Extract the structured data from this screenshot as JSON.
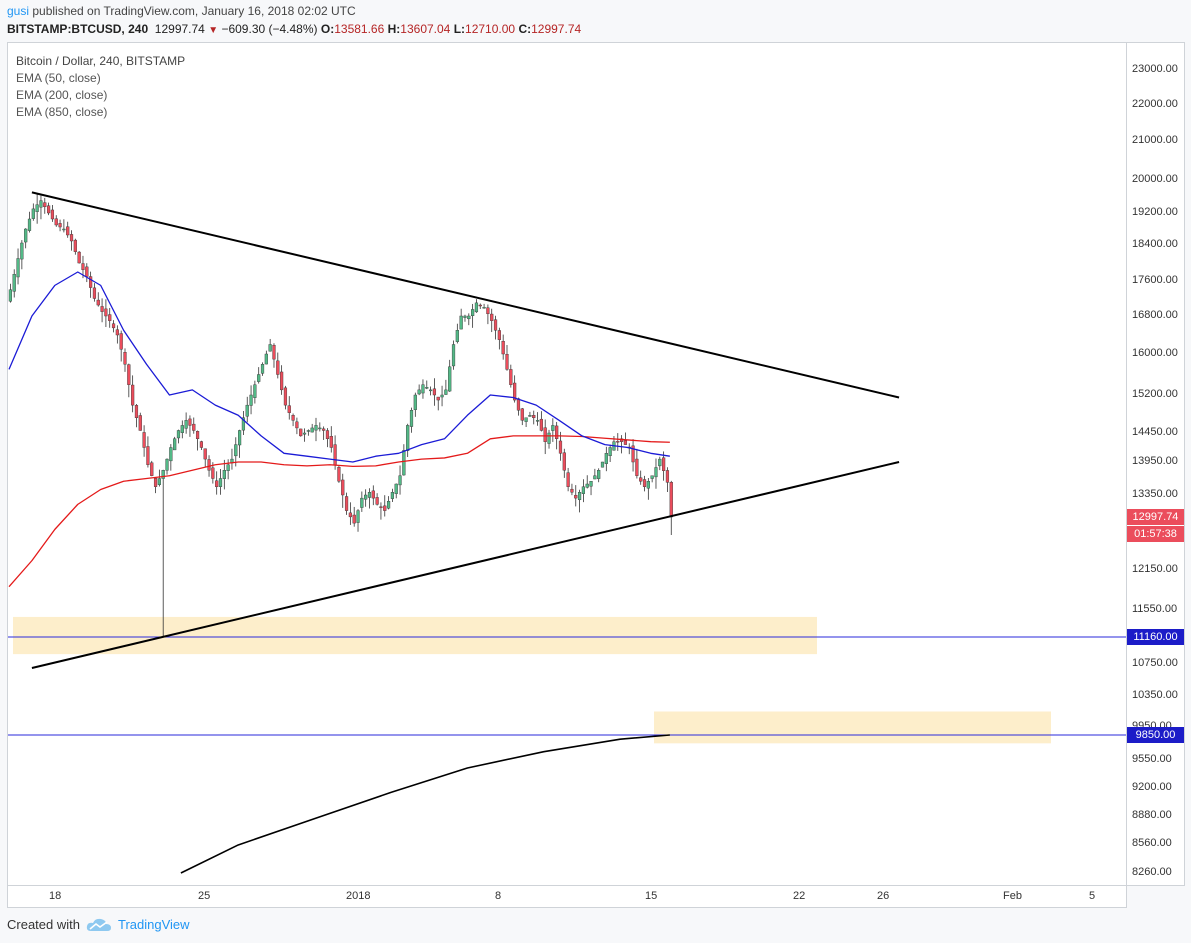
{
  "header": {
    "user": "gusi",
    "published": " published on TradingView.com, January 16, 2018 02:02 UTC",
    "symbol": "BITSTAMP:BTCUSD, 240",
    "last": "12997.74",
    "down_arrow": "▼",
    "change": "−609.30 (−4.48%)",
    "o_label": "O:",
    "o": "13581.66",
    "h_label": "H:",
    "h": "13607.04",
    "l_label": "L:",
    "l": "12710.00",
    "c_label": "C:",
    "c": "12997.74"
  },
  "legend": {
    "title": "Bitcoin / Dollar, 240, BITSTAMP",
    "ema1": "EMA (50, close)",
    "ema2": "EMA (200, close)",
    "ema3": "EMA (850, close)"
  },
  "price_axis": {
    "ticks": [
      "23000.00",
      "22000.00",
      "21000.00",
      "20000.00",
      "19200.00",
      "18400.00",
      "17600.00",
      "16800.00",
      "16000.00",
      "15200.00",
      "14450.00",
      "13950.00",
      "13350.00",
      "12150.00",
      "11550.00",
      "10750.00",
      "10350.00",
      "9950.00",
      "9550.00",
      "9200.00",
      "8880.00",
      "8560.00",
      "8260.00"
    ],
    "last_price": "12997.74",
    "countdown": "01:57:38",
    "level1": "11160.00",
    "level2": "9850.00"
  },
  "time_axis": {
    "ticks": [
      "18",
      "25",
      "2018",
      "8",
      "15",
      "22",
      "26",
      "Feb",
      "5"
    ]
  },
  "footer": {
    "created_with": "Created with",
    "brand": "TradingView"
  },
  "colors": {
    "up": "#53b987",
    "down": "#eb4d5c",
    "ema50": "#1b1bd6",
    "ema200": "#e41a1a",
    "ema850": "#000000",
    "zone": "#fdeecb",
    "hline": "#2a2adb",
    "last_badge": "#eb4d5c",
    "level_badge": "#1c1cc8"
  },
  "chart_data": {
    "type": "candlestick",
    "title": "Bitcoin / Dollar, 240, BITSTAMP",
    "x_ticks": [
      "18",
      "25",
      "2018",
      "8",
      "15",
      "22",
      "26",
      "Feb",
      "5"
    ],
    "y_ticks": [
      23000,
      22000,
      21000,
      20000,
      19200,
      18400,
      17600,
      16800,
      16000,
      15200,
      14450,
      13950,
      13350,
      12150,
      11550,
      10750,
      10350,
      9950,
      9550,
      9200,
      8880,
      8560,
      8260
    ],
    "close_path": [
      [
        0,
        17400
      ],
      [
        2,
        18100
      ],
      [
        4,
        18800
      ],
      [
        6,
        19300
      ],
      [
        8,
        19500
      ],
      [
        10,
        19200
      ],
      [
        12,
        18900
      ],
      [
        14,
        18800
      ],
      [
        16,
        18500
      ],
      [
        18,
        18000
      ],
      [
        20,
        17700
      ],
      [
        22,
        17200
      ],
      [
        24,
        16900
      ],
      [
        26,
        16700
      ],
      [
        28,
        16400
      ],
      [
        30,
        15800
      ],
      [
        32,
        15000
      ],
      [
        34,
        14500
      ],
      [
        36,
        13900
      ],
      [
        38,
        13500
      ],
      [
        40,
        13800
      ],
      [
        42,
        14200
      ],
      [
        44,
        14500
      ],
      [
        46,
        14700
      ],
      [
        48,
        14500
      ],
      [
        50,
        14200
      ],
      [
        52,
        13800
      ],
      [
        54,
        13500
      ],
      [
        56,
        13800
      ],
      [
        58,
        14000
      ],
      [
        60,
        14500
      ],
      [
        62,
        15000
      ],
      [
        64,
        15400
      ],
      [
        66,
        15800
      ],
      [
        68,
        16200
      ],
      [
        70,
        15600
      ],
      [
        72,
        15000
      ],
      [
        74,
        14700
      ],
      [
        76,
        14400
      ],
      [
        78,
        14500
      ],
      [
        80,
        14600
      ],
      [
        82,
        14500
      ],
      [
        84,
        14200
      ],
      [
        86,
        13600
      ],
      [
        88,
        13100
      ],
      [
        90,
        12900
      ],
      [
        92,
        13300
      ],
      [
        94,
        13400
      ],
      [
        96,
        13200
      ],
      [
        98,
        13100
      ],
      [
        100,
        13400
      ],
      [
        102,
        13700
      ],
      [
        104,
        14600
      ],
      [
        106,
        15200
      ],
      [
        108,
        15400
      ],
      [
        110,
        15300
      ],
      [
        112,
        15100
      ],
      [
        114,
        15300
      ],
      [
        116,
        16200
      ],
      [
        118,
        16800
      ],
      [
        120,
        16800
      ],
      [
        122,
        17100
      ],
      [
        124,
        17000
      ],
      [
        126,
        16700
      ],
      [
        128,
        16300
      ],
      [
        130,
        15700
      ],
      [
        132,
        15100
      ],
      [
        134,
        14700
      ],
      [
        136,
        14800
      ],
      [
        138,
        14700
      ],
      [
        140,
        14300
      ],
      [
        142,
        14600
      ],
      [
        144,
        14100
      ],
      [
        146,
        13500
      ],
      [
        148,
        13300
      ],
      [
        150,
        13500
      ],
      [
        152,
        13600
      ],
      [
        154,
        13800
      ],
      [
        156,
        14100
      ],
      [
        158,
        14300
      ],
      [
        160,
        14300
      ],
      [
        162,
        14200
      ],
      [
        164,
        13700
      ],
      [
        166,
        13500
      ],
      [
        168,
        13700
      ],
      [
        170,
        14000
      ],
      [
        172,
        13580
      ],
      [
        173,
        12998
      ]
    ],
    "low_wick": [
      [
        40,
        11160
      ]
    ],
    "ema50": [
      [
        0,
        15700
      ],
      [
        6,
        16800
      ],
      [
        12,
        17500
      ],
      [
        18,
        17800
      ],
      [
        24,
        17500
      ],
      [
        30,
        16500
      ],
      [
        36,
        15800
      ],
      [
        42,
        15200
      ],
      [
        48,
        15300
      ],
      [
        54,
        15000
      ],
      [
        60,
        14800
      ],
      [
        66,
        14400
      ],
      [
        72,
        14100
      ],
      [
        78,
        14050
      ],
      [
        84,
        14000
      ],
      [
        90,
        13950
      ],
      [
        96,
        14050
      ],
      [
        102,
        14100
      ],
      [
        108,
        14250
      ],
      [
        114,
        14350
      ],
      [
        120,
        14800
      ],
      [
        126,
        15200
      ],
      [
        132,
        15150
      ],
      [
        138,
        15000
      ],
      [
        144,
        14700
      ],
      [
        150,
        14400
      ],
      [
        156,
        14250
      ],
      [
        162,
        14200
      ],
      [
        168,
        14100
      ],
      [
        173,
        14050
      ]
    ],
    "ema200": [
      [
        0,
        11900
      ],
      [
        6,
        12300
      ],
      [
        12,
        12800
      ],
      [
        18,
        13200
      ],
      [
        24,
        13450
      ],
      [
        30,
        13600
      ],
      [
        36,
        13650
      ],
      [
        42,
        13700
      ],
      [
        48,
        13800
      ],
      [
        54,
        13900
      ],
      [
        60,
        13950
      ],
      [
        66,
        13950
      ],
      [
        72,
        13900
      ],
      [
        78,
        13880
      ],
      [
        84,
        13900
      ],
      [
        90,
        13870
      ],
      [
        96,
        13880
      ],
      [
        102,
        13950
      ],
      [
        108,
        14000
      ],
      [
        114,
        14020
      ],
      [
        120,
        14100
      ],
      [
        126,
        14350
      ],
      [
        132,
        14400
      ],
      [
        138,
        14400
      ],
      [
        144,
        14400
      ],
      [
        150,
        14390
      ],
      [
        156,
        14360
      ],
      [
        162,
        14330
      ],
      [
        168,
        14300
      ],
      [
        173,
        14290
      ]
    ],
    "ema850": [
      [
        45,
        8200
      ],
      [
        60,
        8550
      ],
      [
        80,
        8850
      ],
      [
        100,
        9150
      ],
      [
        120,
        9450
      ],
      [
        140,
        9650
      ],
      [
        160,
        9800
      ],
      [
        173,
        9850
      ]
    ],
    "trendline_upper": [
      [
        6,
        19700
      ],
      [
        233,
        15150
      ]
    ],
    "trendline_lower": [
      [
        6,
        10700
      ],
      [
        233,
        13950
      ]
    ],
    "support_zones": [
      {
        "from": 10900,
        "to": 11450
      },
      {
        "from": 9750,
        "to": 10150
      }
    ],
    "horizontal_levels": [
      11160,
      9850
    ],
    "last_price": 12997.74
  }
}
